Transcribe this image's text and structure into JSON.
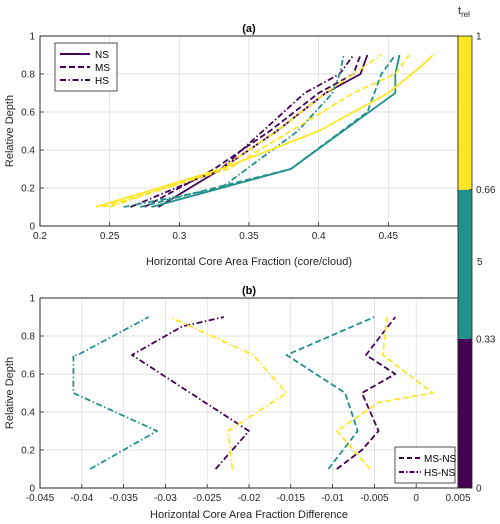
{
  "colors": {
    "t0": "#440154",
    "t1": "#21918c",
    "t2": "#fde725",
    "axis": "#262626",
    "grid": "#d9d9d9"
  },
  "colorbar": {
    "label_main": "t",
    "label_sub": "rel",
    "tick_labels": [
      "0",
      "0.33",
      "0.66",
      "1"
    ],
    "segments": [
      {
        "from": 0,
        "to": 0.33,
        "color": "#440154"
      },
      {
        "from": 0.33,
        "to": 0.66,
        "color": "#21918c"
      },
      {
        "from": 0.66,
        "to": 1,
        "color": "#fde725"
      }
    ]
  },
  "stray_label": "5",
  "chart_data": [
    {
      "type": "line",
      "title": "(a)",
      "xlabel": "Horizontal Core Area Fraction (core/cloud)",
      "ylabel": "Relative Depth",
      "xlim": [
        0.2,
        0.5
      ],
      "ylim": [
        0,
        1
      ],
      "xticks": [
        0.2,
        0.25,
        0.3,
        0.35,
        0.4,
        0.45
      ],
      "xtick_labels": [
        "0.2",
        "0.25",
        "0.3",
        "0.35",
        "0.4",
        "0.45"
      ],
      "yticks": [
        0,
        0.2,
        0.4,
        0.6,
        0.8,
        1
      ],
      "ytick_labels": [
        "0",
        "0.2",
        "0.4",
        "0.6",
        "0.8",
        "1"
      ],
      "grid": true,
      "legend": {
        "position": "top-left",
        "entries": [
          {
            "label": "NS",
            "style": "solid"
          },
          {
            "label": "MS",
            "style": "dashed"
          },
          {
            "label": "HS",
            "style": "dashdot"
          }
        ]
      },
      "series": [
        {
          "time": 0,
          "style": "solid",
          "x": [
            0.285,
            0.33,
            0.37,
            0.405,
            0.43,
            0.435
          ],
          "y": [
            0.1,
            0.3,
            0.5,
            0.7,
            0.8,
            0.9
          ]
        },
        {
          "time": 0,
          "style": "dashed",
          "x": [
            0.275,
            0.325,
            0.365,
            0.4,
            0.425,
            0.43
          ],
          "y": [
            0.1,
            0.3,
            0.5,
            0.7,
            0.8,
            0.9
          ]
        },
        {
          "time": 0,
          "style": "dashdot",
          "x": [
            0.265,
            0.33,
            0.36,
            0.39,
            0.415,
            0.425
          ],
          "y": [
            0.1,
            0.3,
            0.5,
            0.7,
            0.8,
            0.9
          ]
        },
        {
          "time": 1,
          "style": "solid",
          "x": [
            0.28,
            0.38,
            0.455,
            0.455,
            0.458
          ],
          "y": [
            0.1,
            0.3,
            0.7,
            0.8,
            0.9
          ]
        },
        {
          "time": 1,
          "style": "dashed",
          "x": [
            0.272,
            0.325,
            0.38,
            0.435,
            0.445,
            0.455
          ],
          "y": [
            0.1,
            0.2,
            0.3,
            0.6,
            0.8,
            0.9
          ]
        },
        {
          "time": 1,
          "style": "dashdot",
          "x": [
            0.26,
            0.33,
            0.385,
            0.41,
            0.415,
            0.418
          ],
          "y": [
            0.1,
            0.2,
            0.5,
            0.7,
            0.8,
            0.9
          ]
        },
        {
          "time": 2,
          "style": "solid",
          "x": [
            0.24,
            0.33,
            0.4,
            0.45,
            0.475,
            0.482
          ],
          "y": [
            0.1,
            0.3,
            0.5,
            0.7,
            0.85,
            0.9
          ]
        },
        {
          "time": 2,
          "style": "dashed",
          "x": [
            0.245,
            0.335,
            0.38,
            0.425,
            0.455,
            0.465
          ],
          "y": [
            0.1,
            0.3,
            0.5,
            0.7,
            0.8,
            0.9
          ]
        },
        {
          "time": 2,
          "style": "dashdot",
          "x": [
            0.25,
            0.33,
            0.37,
            0.405,
            0.425,
            0.445
          ],
          "y": [
            0.1,
            0.3,
            0.5,
            0.7,
            0.8,
            0.9
          ]
        }
      ]
    },
    {
      "type": "line",
      "title": "(b)",
      "xlabel": "Horizontal Core Area Fraction Difference",
      "ylabel": "Relative Depth",
      "xlim": [
        -0.045,
        0.005
      ],
      "ylim": [
        0,
        1
      ],
      "xticks": [
        -0.045,
        -0.04,
        -0.035,
        -0.03,
        -0.025,
        -0.02,
        -0.015,
        -0.01,
        -0.005,
        0,
        0.005
      ],
      "xtick_labels": [
        "-0.045",
        "-0.04",
        "-0.035",
        "-0.03",
        "-0.025",
        "-0.02",
        "-0.015",
        "-0.01",
        "-0.005",
        "0",
        "0.005"
      ],
      "yticks": [
        0,
        0.2,
        0.4,
        0.6,
        0.8,
        1
      ],
      "ytick_labels": [
        "0",
        "0.2",
        "0.4",
        "0.6",
        "0.8",
        "1"
      ],
      "grid": true,
      "legend": {
        "position": "bottom-right",
        "entries": [
          {
            "label": "MS-NS",
            "style": "dashed"
          },
          {
            "label": "HS-NS",
            "style": "dashdot"
          }
        ]
      },
      "series": [
        {
          "time": 0,
          "style": "dashdot",
          "x": [
            -0.024,
            -0.02,
            -0.027,
            -0.034,
            -0.028,
            -0.023
          ],
          "y": [
            0.1,
            0.3,
            0.5,
            0.7,
            0.85,
            0.9
          ]
        },
        {
          "time": 1,
          "style": "dashdot",
          "x": [
            -0.039,
            -0.031,
            -0.041,
            -0.041,
            -0.0405,
            -0.032
          ],
          "y": [
            0.1,
            0.3,
            0.5,
            0.7,
            0.7,
            0.9
          ]
        },
        {
          "time": 2,
          "style": "dashdot",
          "x": [
            -0.022,
            -0.0225,
            -0.0155,
            -0.0195,
            -0.0295
          ],
          "y": [
            0.1,
            0.3,
            0.5,
            0.7,
            0.9
          ]
        },
        {
          "time": 0,
          "style": "dashed",
          "x": [
            -0.0095,
            -0.0065,
            -0.0045,
            -0.0065,
            -0.0025,
            -0.006,
            -0.0025
          ],
          "y": [
            0.1,
            0.2,
            0.3,
            0.5,
            0.6,
            0.7,
            0.9
          ]
        },
        {
          "time": 1,
          "style": "dashed",
          "x": [
            -0.0105,
            -0.007,
            -0.0085,
            -0.0155,
            -0.005
          ],
          "y": [
            0.1,
            0.3,
            0.5,
            0.7,
            0.9
          ]
        },
        {
          "time": 2,
          "style": "dashed",
          "x": [
            -0.0055,
            -0.0095,
            -0.0045,
            0.002,
            -0.004,
            -0.0035
          ],
          "y": [
            0.1,
            0.3,
            0.45,
            0.5,
            0.7,
            0.9
          ]
        }
      ]
    }
  ]
}
